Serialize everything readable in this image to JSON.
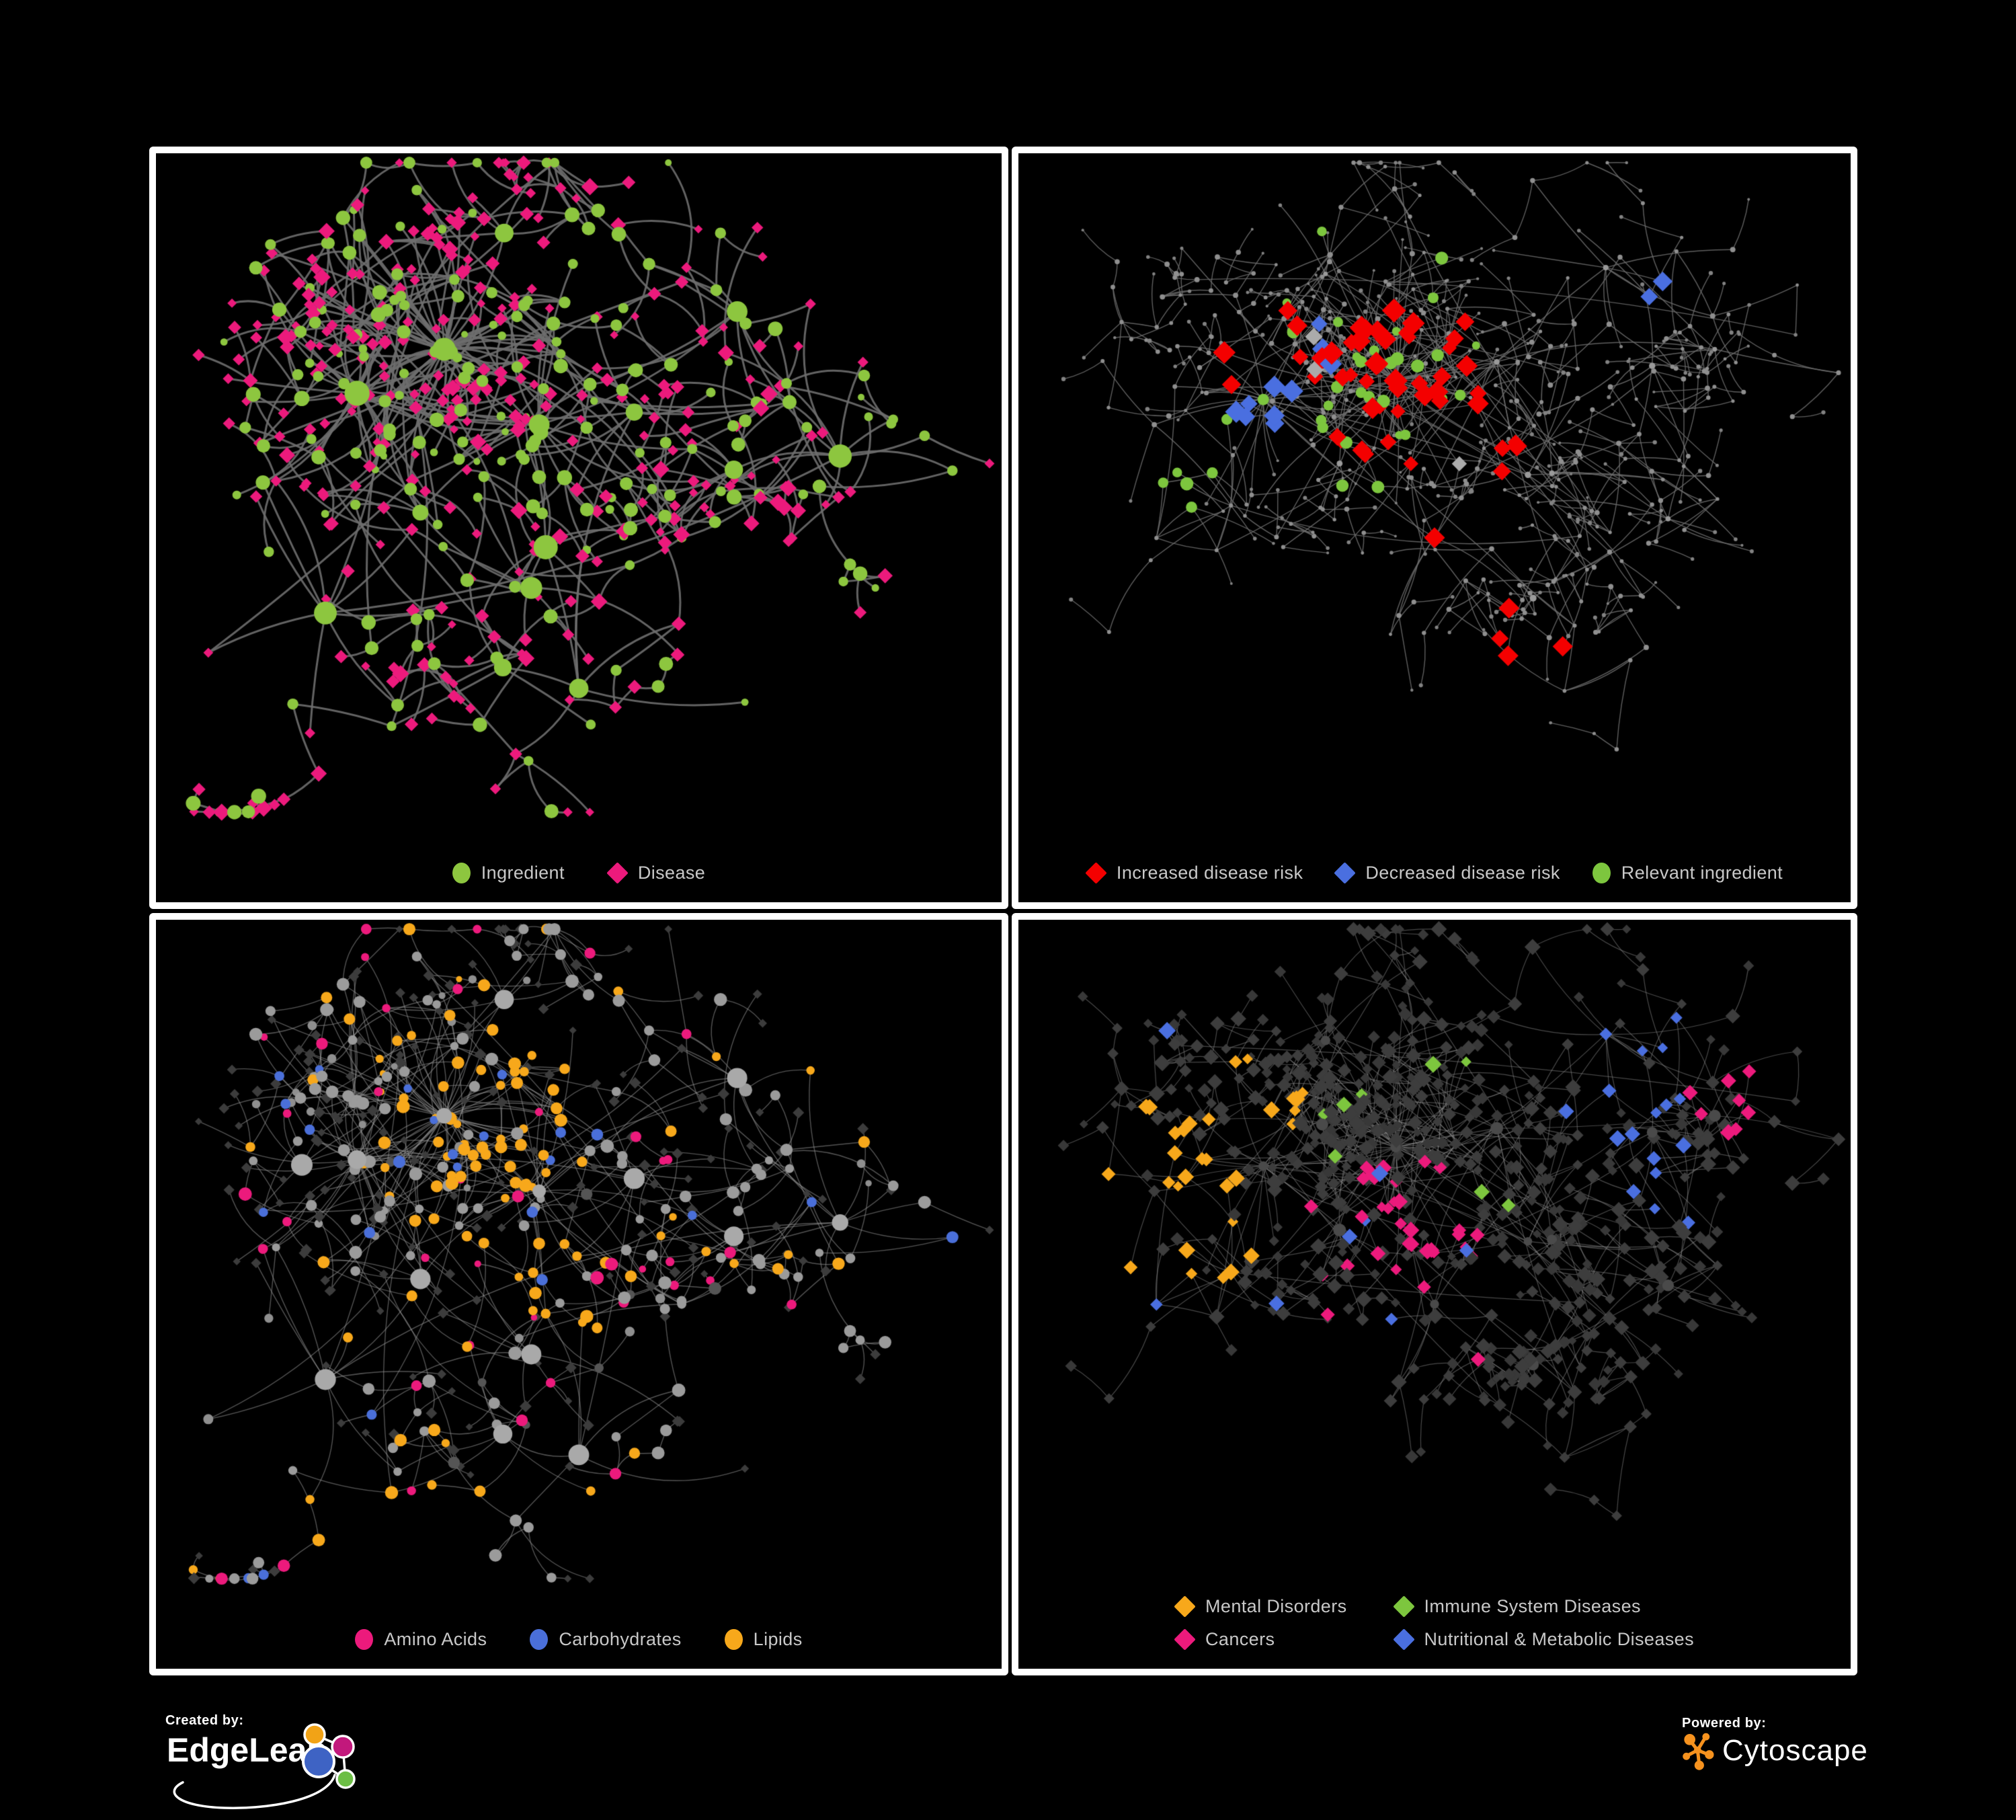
{
  "branding": {
    "created_by_label": "Created by:",
    "edgeleap_name": "EdgeLeap",
    "powered_by_label": "Powered by:",
    "cytoscape_name": "Cytoscape",
    "edgeleap_blue": "#3E63C4",
    "edgeleap_orange": "#F2A316",
    "edgeleap_magenta": "#C2187C",
    "edgeleap_green": "#6CBE45",
    "cytoscape_orange": "#F6921E"
  },
  "layouts": {
    "A": {
      "seed": 41,
      "nodes": 540,
      "step": 190,
      "bias": 2.8,
      "extra": 0.035,
      "chain": 0.42,
      "clusters": [
        [
          0.33,
          0.28
        ],
        [
          0.22,
          0.35
        ],
        [
          0.45,
          0.4
        ],
        [
          0.57,
          0.38
        ],
        [
          0.3,
          0.54
        ],
        [
          0.44,
          0.66
        ],
        [
          0.7,
          0.22
        ],
        [
          0.83,
          0.45
        ],
        [
          0.5,
          0.82
        ],
        [
          0.63,
          0.58
        ],
        [
          0.18,
          0.7
        ]
      ]
    },
    "B": {
      "seed": 97,
      "nodes": 720,
      "step": 160,
      "bias": 2.4,
      "extra": 0.04,
      "chain": 0.5,
      "clusters": [
        [
          0.45,
          0.33
        ],
        [
          0.28,
          0.36
        ],
        [
          0.58,
          0.3
        ],
        [
          0.72,
          0.15
        ],
        [
          0.22,
          0.6
        ],
        [
          0.5,
          0.58
        ],
        [
          0.68,
          0.72
        ],
        [
          0.86,
          0.28
        ],
        [
          0.36,
          0.16
        ],
        [
          0.62,
          0.48
        ],
        [
          0.14,
          0.4
        ],
        [
          0.8,
          0.55
        ]
      ]
    }
  },
  "panels": [
    {
      "name": "ingredient-disease-network",
      "legend": {
        "items": [
          {
            "shape": "circle",
            "color": "#8DC63F",
            "label": "Ingredient"
          },
          {
            "shape": "diamond",
            "color": "#EC1A7C",
            "label": "Disease"
          }
        ]
      },
      "network": {
        "layout": "A",
        "edge": {
          "color": "#6E6E6E",
          "width": 3.0,
          "alpha": 0.9,
          "curve": 0.5
        },
        "paint": {
          "hub": [
            [
              "circle",
              "#8DC63F",
              15,
              1
            ]
          ],
          "mid": [
            [
              "circle",
              "#8DC63F",
              9,
              0.55
            ],
            [
              "diamond",
              "#EC1A7C",
              8,
              0.45
            ]
          ],
          "leaf": [
            [
              "diamond",
              "#EC1A7C",
              6.5,
              0.8
            ],
            [
              "circle",
              "#8DC63F",
              6.5,
              0.2
            ]
          ]
        },
        "regions": []
      }
    },
    {
      "name": "disease-risk-network",
      "legend": {
        "items": [
          {
            "shape": "diamond",
            "color": "#F40000",
            "label": "Increased disease risk"
          },
          {
            "shape": "diamond",
            "color": "#4A6FE0",
            "label": "Decreased disease risk"
          },
          {
            "shape": "circle",
            "color": "#7DC63E",
            "label": "Relevant ingredient"
          }
        ]
      },
      "network": {
        "layout": "B",
        "edge": {
          "color": "#6F6F6F",
          "width": 1.4,
          "alpha": 0.85,
          "curve": 0.25
        },
        "paint": {
          "hub": [
            [
              "circle",
              "#9A9A9A",
              4.5,
              1
            ]
          ],
          "mid": [
            [
              "circle",
              "#8F8F8F",
              3.2,
              1
            ]
          ],
          "leaf": [
            [
              "circle",
              "#828282",
              2.6,
              1
            ]
          ]
        },
        "regions": [
          {
            "c": [
              0.45,
              0.35
            ],
            "r": 0.1,
            "p": 0.5,
            "d": 4,
            "o": [
              [
                "diamond",
                "#F40000",
                11,
                0.75
              ],
              [
                "circle",
                "#7DC63E",
                8,
                0.25
              ]
            ]
          },
          {
            "c": [
              0.3,
              0.3
            ],
            "r": 0.07,
            "p": 0.5,
            "d": 4,
            "o": [
              [
                "diamond",
                "#F40000",
                11,
                0.3
              ],
              [
                "diamond",
                "#4A6FE0",
                11,
                0.3
              ],
              [
                "diamond",
                "#ABABAB",
                11,
                0.2
              ],
              [
                "circle",
                "#7DC63E",
                8,
                0.2
              ]
            ]
          },
          {
            "c": [
              0.27,
              0.37
            ],
            "r": 0.05,
            "p": 0.6,
            "d": 4,
            "o": [
              [
                "diamond",
                "#4A6FE0",
                11,
                0.6
              ],
              [
                "circle",
                "#7DC63E",
                8,
                0.4
              ]
            ]
          },
          {
            "c": [
              0.55,
              0.42
            ],
            "r": 0.07,
            "p": 0.35,
            "d": 4,
            "o": [
              [
                "diamond",
                "#F40000",
                11,
                0.6
              ],
              [
                "diamond",
                "#ABABAB",
                11,
                0.2
              ],
              [
                "circle",
                "#7DC63E",
                8,
                0.2
              ]
            ]
          },
          {
            "c": [
              0.38,
              0.3
            ],
            "r": 0.18,
            "p": 0.12,
            "d": 4,
            "o": [
              [
                "circle",
                "#7DC63E",
                8,
                0.7
              ],
              [
                "diamond",
                "#F40000",
                11,
                0.3
              ]
            ]
          },
          {
            "c": [
              0.8,
              0.2
            ],
            "r": 0.035,
            "p": 0.9,
            "d": 6,
            "o": [
              [
                "diamond",
                "#4A6FE0",
                11,
                1
              ]
            ]
          },
          {
            "c": [
              0.62,
              0.72
            ],
            "r": 0.05,
            "p": 0.5,
            "d": 5,
            "o": [
              [
                "diamond",
                "#F40000",
                11,
                1
              ]
            ]
          },
          {
            "c": [
              0.52,
              0.55
            ],
            "r": 0.04,
            "p": 0.4,
            "d": 5,
            "o": [
              [
                "diamond",
                "#F40000",
                11,
                0.7
              ],
              [
                "diamond",
                "#ABABAB",
                11,
                0.3
              ]
            ]
          },
          {
            "c": [
              0.2,
              0.5
            ],
            "r": 0.05,
            "p": 0.3,
            "d": 5,
            "o": [
              [
                "circle",
                "#7DC63E",
                8,
                1
              ]
            ]
          }
        ]
      }
    },
    {
      "name": "nutrient-class-network",
      "legend": {
        "items": [
          {
            "shape": "circle",
            "color": "#EC1A7C",
            "label": "Amino Acids"
          },
          {
            "shape": "circle",
            "color": "#4A6FD9",
            "label": "Carbohydrates"
          },
          {
            "shape": "circle",
            "color": "#F7A81B",
            "label": "Lipids"
          }
        ]
      },
      "network": {
        "layout": "A",
        "edge": {
          "color": "#989898",
          "width": 1.4,
          "alpha": 0.55,
          "curve": 0.5
        },
        "paint": {
          "hub": [
            [
              "circle",
              "#A9A9A9",
              13,
              1
            ]
          ],
          "mid": [
            [
              "circle",
              "#9B9B9B",
              8,
              0.58
            ],
            [
              "circle",
              "#F7A81B",
              8,
              0.22
            ],
            [
              "circle",
              "#4A6FD9",
              8,
              0.08
            ],
            [
              "circle",
              "#EC1A7C",
              8,
              0.06
            ],
            [
              "circle",
              "#555555",
              8,
              0.06
            ]
          ],
          "leaf": [
            [
              "diamond",
              "#3C3C3C",
              5.5,
              0.78
            ],
            [
              "circle",
              "#8F8F8F",
              6,
              0.12
            ],
            [
              "circle",
              "#F7A81B",
              6,
              0.06
            ],
            [
              "circle",
              "#EC1A7C",
              6,
              0.04
            ]
          ]
        },
        "regions": [
          {
            "c": [
              0.42,
              0.27
            ],
            "r": 0.1,
            "p": 0.5,
            "d": 9,
            "o": [
              [
                "circle",
                "#F7A81B",
                8,
                0.8
              ],
              [
                "circle",
                "#4A6FD9",
                8,
                0.2
              ]
            ]
          },
          {
            "c": [
              0.35,
              0.42
            ],
            "r": 0.07,
            "p": 0.35,
            "d": 9,
            "o": [
              [
                "circle",
                "#F7A81B",
                8,
                1
              ]
            ]
          },
          {
            "c": [
              0.47,
              0.58
            ],
            "r": 0.05,
            "p": 0.5,
            "d": 9,
            "o": [
              [
                "circle",
                "#F7A81B",
                8,
                1
              ]
            ]
          },
          {
            "c": [
              0.6,
              0.62
            ],
            "r": 0.1,
            "p": 0.2,
            "d": 9,
            "o": [
              [
                "circle",
                "#EC1A7C",
                8,
                0.6
              ],
              [
                "circle",
                "#F7A81B",
                8,
                0.4
              ]
            ]
          }
        ]
      }
    },
    {
      "name": "disease-class-network",
      "legend": {
        "items": [
          {
            "shape": "diamond",
            "color": "#F7A81B",
            "label": "Mental Disorders"
          },
          {
            "shape": "diamond",
            "color": "#7DC63E",
            "label": "Immune System Diseases"
          },
          {
            "shape": "diamond",
            "color": "#EC1A7C",
            "label": "Cancers"
          },
          {
            "shape": "diamond",
            "color": "#4A6FE0",
            "label": "Nutritional & Metabolic Diseases"
          }
        ]
      },
      "network": {
        "layout": "B",
        "edge": {
          "color": "#909090",
          "width": 1.2,
          "alpha": 0.5,
          "curve": 0.25
        },
        "paint": {
          "hub": [
            [
              "circle",
              "#4A4A4A",
              8,
              1
            ]
          ],
          "mid": [
            [
              "diamond",
              "#3D3D3D",
              7.5,
              1
            ]
          ],
          "leaf": [
            [
              "diamond",
              "#383838",
              6.5,
              1
            ]
          ]
        },
        "regions": [
          {
            "c": [
              0.16,
              0.42
            ],
            "r": 0.12,
            "p": 0.7,
            "d": 9,
            "o": [
              [
                "diamond",
                "#F7A81B",
                8,
                1
              ]
            ]
          },
          {
            "c": [
              0.27,
              0.25
            ],
            "r": 0.06,
            "p": 0.4,
            "d": 9,
            "o": [
              [
                "diamond",
                "#F7A81B",
                8,
                1
              ]
            ]
          },
          {
            "c": [
              0.47,
              0.47
            ],
            "r": 0.09,
            "p": 0.5,
            "d": 9,
            "o": [
              [
                "diamond",
                "#EC1A7C",
                8,
                1
              ]
            ]
          },
          {
            "c": [
              0.88,
              0.25
            ],
            "r": 0.05,
            "p": 0.6,
            "d": 9,
            "o": [
              [
                "diamond",
                "#EC1A7C",
                8,
                1
              ]
            ]
          },
          {
            "c": [
              0.74,
              0.2
            ],
            "r": 0.09,
            "p": 0.4,
            "d": 9,
            "o": [
              [
                "diamond",
                "#4A6FE0",
                8,
                1
              ]
            ]
          },
          {
            "c": [
              0.8,
              0.4
            ],
            "r": 0.06,
            "p": 0.4,
            "d": 9,
            "o": [
              [
                "diamond",
                "#4A6FE0",
                8,
                1
              ]
            ]
          },
          {
            "c": [
              0.57,
              0.57
            ],
            "r": 0.05,
            "p": 0.5,
            "d": 9,
            "o": [
              [
                "diamond",
                "#4A6FE0",
                8,
                1
              ]
            ]
          },
          {
            "c": [
              0.3,
              0.75
            ],
            "r": 0.05,
            "p": 0.4,
            "d": 9,
            "o": [
              [
                "diamond",
                "#4A6FE0",
                8,
                1
              ]
            ]
          },
          {
            "c": [
              0.63,
              0.06
            ],
            "r": 0.06,
            "p": 0.4,
            "d": 9,
            "o": [
              [
                "diamond",
                "#4A6FE0",
                8,
                1
              ]
            ]
          },
          {
            "c": [
              0.12,
              0.12
            ],
            "r": 0.05,
            "p": 0.3,
            "d": 9,
            "o": [
              [
                "diamond",
                "#4A6FE0",
                8,
                1
              ]
            ]
          },
          {
            "c": [
              0.5,
              0.3
            ],
            "r": 0.15,
            "p": 0.05,
            "d": 9,
            "o": [
              [
                "diamond",
                "#7DC63E",
                8,
                1
              ]
            ]
          },
          {
            "c": [
              0.35,
              0.6
            ],
            "r": 0.2,
            "p": 0.08,
            "d": 9,
            "o": [
              [
                "diamond",
                "#4A6FE0",
                8,
                0.6
              ],
              [
                "diamond",
                "#EC1A7C",
                8,
                0.4
              ]
            ]
          }
        ]
      }
    }
  ]
}
